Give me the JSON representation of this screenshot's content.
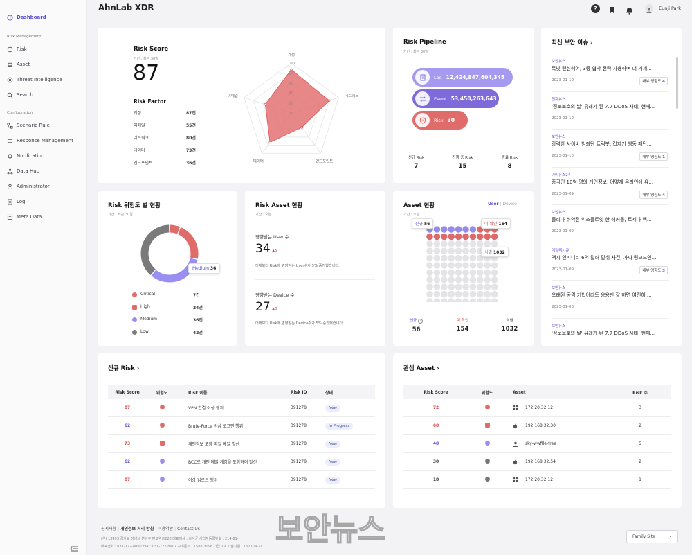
{
  "app": {
    "name": "AhnLab XDR",
    "user": "Eunji Park"
  },
  "sidebar": {
    "dashboard": "Dashboard",
    "section_risk": "Risk Management",
    "risk_items": [
      "Risk",
      "Asset",
      "Threat Intelligence",
      "Search"
    ],
    "section_config": "Configuration",
    "config_items": [
      "Scenario Rule",
      "Response Management",
      "Notification",
      "Data Hub",
      "Administrator",
      "Log",
      "Meta Data"
    ]
  },
  "risk_score": {
    "title": "Risk Score",
    "period": "기간 : 최근 30일",
    "score": "87",
    "factor_title": "Risk Factor",
    "factors": [
      {
        "label": "계정",
        "value": "87건"
      },
      {
        "label": "이메일",
        "value": "55건"
      },
      {
        "label": "네트워크",
        "value": "80건"
      },
      {
        "label": "데이터",
        "value": "73건"
      },
      {
        "label": "엔드포인트",
        "value": "36건"
      }
    ],
    "radar": {
      "axes": [
        "계정",
        "네트워크",
        "엔드포인트",
        "데이터",
        "이메일"
      ],
      "values": [
        87,
        80,
        36,
        73,
        55
      ],
      "ticks": [
        "100",
        "80",
        "60",
        "40",
        "20",
        "0"
      ],
      "color": "#e37272"
    }
  },
  "pipeline": {
    "title": "Risk Pipeline",
    "period": "기간 : 최근 30일",
    "stages": [
      {
        "label": "Log",
        "value": "12,424,847,604,345",
        "color": "#a59af0",
        "icon": "log-icon"
      },
      {
        "label": "Event",
        "value": "53,450,263,643",
        "color": "#7e6ad9",
        "icon": "event-icon"
      },
      {
        "label": "Risk",
        "value": "30",
        "color": "#e06b6b",
        "icon": "shield-icon"
      }
    ],
    "stats": [
      {
        "label": "신규 Risk",
        "value": "7"
      },
      {
        "label": "진행 중 Risk",
        "value": "15"
      },
      {
        "label": "종료 Risk",
        "value": "8"
      }
    ]
  },
  "news": {
    "title": "최신 보안 이슈",
    "items": [
      {
        "source": "보안뉴스",
        "title": "록빗 랜섬웨어, 3중 협박 전략 사용하며 더 거세...",
        "date": "2023-01-10",
        "impact": "내부 영향도",
        "impact_value": "4"
      },
      {
        "source": "전자뉴스",
        "title": "'정보보호의 날' 유래가 된 7.7 DDoS 사태, 현재...",
        "date": "2023-01-10",
        "impact": "",
        "impact_value": ""
      },
      {
        "source": "보안뉴스",
        "title": "강력한 사이버 범죄단 트릭봇, 갑자기 행동 패턴...",
        "date": "2023-01-10",
        "impact": "내부 영향도",
        "impact_value": "1"
      },
      {
        "source": "아이뉴스24",
        "title": "중국인 10억 명의 개인정보, 어떻게 온라인에 유...",
        "date": "2023-01-09",
        "impact": "내부 영향도",
        "impact_value": "4"
      },
      {
        "source": "보안뉴스",
        "title": "폴리나 취약점 익스플로잇 한 해커들, 로제나 백...",
        "date": "2023-01-09",
        "impact": "",
        "impact_value": ""
      },
      {
        "source": "데일리시큐",
        "title": "액시 인피니티 6억 달러 탈취 사건, 가짜 링크드인...",
        "date": "2023-01-09",
        "impact": "내부 영향도",
        "impact_value": "3"
      },
      {
        "source": "보안뉴스",
        "title": "오래된 공격 기법이라도 응용만 잘 하면 여전히 ...",
        "date": "2023-01-08",
        "impact": "",
        "impact_value": ""
      },
      {
        "source": "보안뉴스",
        "title": "'정보보호의 날' 유래가 된 7.7 DDoS 사태, 현재...",
        "date": "",
        "impact": "",
        "impact_value": ""
      }
    ]
  },
  "severity": {
    "title": "Risk 위험도 별 현황",
    "period": "기간 : 최근 30일",
    "levels": [
      {
        "label": "Critical",
        "value": "7건",
        "count": 7,
        "color": "#e06b6b",
        "shape": "circle"
      },
      {
        "label": "High",
        "value": "24건",
        "count": 24,
        "color": "#e06b6b",
        "shape": "square"
      },
      {
        "label": "Medium",
        "value": "36건",
        "count": 36,
        "color": "#9a8ff0",
        "shape": "circle"
      },
      {
        "label": "Low",
        "value": "42건",
        "count": 42,
        "color": "#7a7a7a",
        "shape": "circle"
      }
    ],
    "tooltip": {
      "label": "Medium",
      "value": "36"
    }
  },
  "risk_asset": {
    "title": "Risk Asset 현황",
    "period": "기간 : 오늘",
    "user": {
      "label": "영향받는 User 수",
      "value": "34",
      "delta": "▲5",
      "desc": "어제보다 Risk에 영향받는 User수가 5% 증가했습니다."
    },
    "device": {
      "label": "영향받는 Device 수",
      "value": "27",
      "delta": "▲5",
      "desc": "어제보다 Risk에 영향받는 Device수가 5% 증가했습니다."
    }
  },
  "asset_status": {
    "title": "Asset 현황",
    "period": "기간 : 오늘",
    "toggle": [
      "User",
      "Device"
    ],
    "tooltips": {
      "new": "신규",
      "new_value": "56",
      "unconfirmed": "미 확인",
      "unconfirmed_value": "154",
      "identified": "식별",
      "identified_value": "1032"
    },
    "grid": {
      "purple": 7,
      "red": 13,
      "gray": 105
    },
    "colors": {
      "purple": "#968be8",
      "red": "#dd6a6a",
      "gray": "#e4e4e6"
    },
    "stats": [
      {
        "label": "신규",
        "value": "56",
        "color": "#5b4fd4"
      },
      {
        "label": "미 확인",
        "value": "154",
        "color": "#dd4a4a"
      },
      {
        "label": "식별",
        "value": "1032",
        "color": "#333"
      }
    ]
  },
  "new_risk": {
    "title": "신규 Risk",
    "headers": [
      "Risk Score",
      "위험도",
      "Risk 이름",
      "Risk ID",
      "상태"
    ],
    "rows": [
      {
        "score": "87",
        "score_color": "#d64545",
        "sev": "circle",
        "sev_color": "#e06b6b",
        "name": "VPN 연결 이상 행위",
        "id": "391278",
        "status": "New"
      },
      {
        "score": "62",
        "score_color": "#5b4fd4",
        "sev": "circle",
        "sev_color": "#e06b6b",
        "name": "Brute-Force 의심 로그인 행위",
        "id": "391278",
        "status": "In Progress"
      },
      {
        "score": "73",
        "score_color": "#d64545",
        "sev": "square",
        "sev_color": "#e06b6b",
        "name": "개인정보 포함 파일 메일 발신",
        "id": "391278",
        "status": "New"
      },
      {
        "score": "62",
        "score_color": "#5b4fd4",
        "sev": "circle",
        "sev_color": "#9a8ff0",
        "name": "BCC로 개인 메일 계정을 포함하여 발신",
        "id": "391278",
        "status": "New"
      },
      {
        "score": "87",
        "score_color": "#d64545",
        "sev": "circle",
        "sev_color": "#9a8ff0",
        "name": "이상 업로드 행위",
        "id": "391278",
        "status": "New"
      }
    ]
  },
  "interest_asset": {
    "title": "관심 Asset",
    "headers": [
      "Risk Score",
      "위험도",
      "Asset",
      "Risk 수"
    ],
    "rows": [
      {
        "score": "72",
        "score_color": "#d64545",
        "sev": "circle",
        "sev_color": "#e06b6b",
        "os": "windows-icon",
        "asset": "172.20.32.12",
        "count": "3"
      },
      {
        "score": "68",
        "score_color": "#d64545",
        "sev": "square",
        "sev_color": "#e06b6b",
        "os": "apple-icon",
        "asset": "192.168.32.30",
        "count": "2"
      },
      {
        "score": "48",
        "score_color": "#5b4fd4",
        "sev": "circle",
        "sev_color": "#9a8ff0",
        "os": "user-icon",
        "asset": "sky-wwfile-free",
        "count": "5"
      },
      {
        "score": "30",
        "score_color": "#333",
        "sev": "circle",
        "sev_color": "#777",
        "os": "apple-icon",
        "asset": "192.168.32.54",
        "count": "2"
      },
      {
        "score": "18",
        "score_color": "#333",
        "sev": "circle",
        "sev_color": "#777",
        "os": "windows-icon",
        "asset": "172.20.32.12",
        "count": "1"
      }
    ]
  },
  "footer": {
    "links": [
      "공지사항",
      "개인정보 처리 방침",
      "이용약관",
      "Contact Us"
    ],
    "line1": "(우) 13493 경기도 성남시 분당구 판교역로220    대표이사 : 강석균    사업자등록번호 : 214-81-",
    "line2": "대표전화 : 031-722-8000    Fax : 031-722-8907    구매문의 : 1588-3096    기업고객 기술지원 : 1577-9431",
    "family_site": "Family Site",
    "watermark": "보안뉴스"
  }
}
